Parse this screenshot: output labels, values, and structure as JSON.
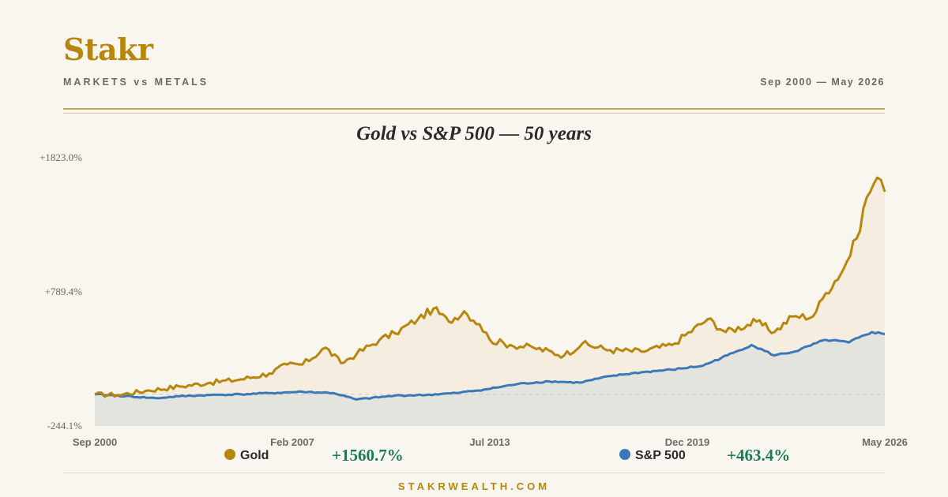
{
  "header": {
    "brand": "Stakr",
    "subtitle": "MARKETS vs METALS",
    "date_range": "Sep 2000 — May 2026"
  },
  "legend": [
    {
      "name": "Gold",
      "change": "+1560.7%",
      "color": "#b8860b"
    },
    {
      "name": "S&P 500",
      "change": "+463.4%",
      "color": "#3b78b7"
    }
  ],
  "footer": {
    "site": "STAKRWEALTH.COM"
  },
  "chart_data": {
    "type": "line",
    "title": "Gold vs S&P 500 — 50 years",
    "y_tick_labels": [
      "+1823.0%",
      "+789.4%",
      "-244.1%"
    ],
    "x_tick_labels": [
      "Sep 2000",
      "Feb 2007",
      "Jul 2013",
      "Dec 2019",
      "May 2026"
    ],
    "ylim": [
      -244.1,
      1823.0
    ],
    "x_range": [
      "2000-09",
      "2026-05"
    ],
    "baseline": 0,
    "grid": false,
    "legend_position": "bottom",
    "series": [
      {
        "name": "Gold",
        "color": "#b8860b",
        "points": [
          [
            "2000-09",
            0
          ],
          [
            "2001-06",
            -5
          ],
          [
            "2002-06",
            30
          ],
          [
            "2003-06",
            60
          ],
          [
            "2004-06",
            90
          ],
          [
            "2005-06",
            115
          ],
          [
            "2006-05",
            160
          ],
          [
            "2006-12",
            230
          ],
          [
            "2007-06",
            230
          ],
          [
            "2008-03",
            360
          ],
          [
            "2008-09",
            240
          ],
          [
            "2009-03",
            310
          ],
          [
            "2009-12",
            420
          ],
          [
            "2010-06",
            470
          ],
          [
            "2011-03",
            580
          ],
          [
            "2011-09",
            660
          ],
          [
            "2012-03",
            560
          ],
          [
            "2012-09",
            640
          ],
          [
            "2013-03",
            540
          ],
          [
            "2013-07",
            420
          ],
          [
            "2014-03",
            380
          ],
          [
            "2014-12",
            360
          ],
          [
            "2015-12",
            300
          ],
          [
            "2016-07",
            390
          ],
          [
            "2017-06",
            340
          ],
          [
            "2018-06",
            330
          ],
          [
            "2019-06",
            380
          ],
          [
            "2020-08",
            580
          ],
          [
            "2021-03",
            480
          ],
          [
            "2022-03",
            560
          ],
          [
            "2022-10",
            480
          ],
          [
            "2023-05",
            600
          ],
          [
            "2024-01",
            600
          ],
          [
            "2024-06",
            780
          ],
          [
            "2025-01",
            970
          ],
          [
            "2025-06",
            1200
          ],
          [
            "2025-10",
            1520
          ],
          [
            "2026-02",
            1670
          ],
          [
            "2026-05",
            1560.7
          ]
        ]
      },
      {
        "name": "S&P 500",
        "color": "#3b78b7",
        "points": [
          [
            "2000-09",
            0
          ],
          [
            "2001-06",
            -10
          ],
          [
            "2002-09",
            -30
          ],
          [
            "2003-06",
            -15
          ],
          [
            "2004-06",
            -5
          ],
          [
            "2005-06",
            0
          ],
          [
            "2006-06",
            10
          ],
          [
            "2007-06",
            20
          ],
          [
            "2008-06",
            10
          ],
          [
            "2009-03",
            -40
          ],
          [
            "2010-06",
            -10
          ],
          [
            "2011-06",
            -5
          ],
          [
            "2012-06",
            10
          ],
          [
            "2013-06",
            40
          ],
          [
            "2014-06",
            80
          ],
          [
            "2015-06",
            100
          ],
          [
            "2016-06",
            90
          ],
          [
            "2017-06",
            140
          ],
          [
            "2018-06",
            170
          ],
          [
            "2019-06",
            190
          ],
          [
            "2020-06",
            220
          ],
          [
            "2021-06",
            320
          ],
          [
            "2022-01",
            380
          ],
          [
            "2022-10",
            300
          ],
          [
            "2023-06",
            330
          ],
          [
            "2024-06",
            420
          ],
          [
            "2025-03",
            400
          ],
          [
            "2025-12",
            480
          ],
          [
            "2026-05",
            463.4
          ]
        ]
      }
    ]
  }
}
